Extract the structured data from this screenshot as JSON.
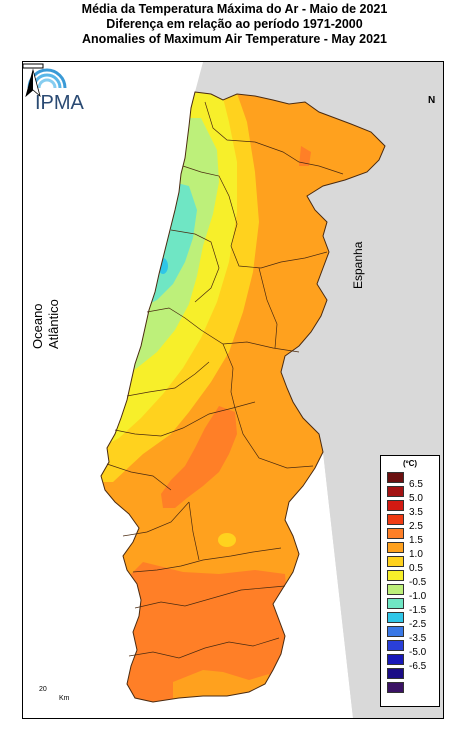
{
  "title": {
    "line1": "Média da Temperatura Máxima do Ar - Maio de 2021",
    "line2": "Diferença em relação ao período 1971-2000",
    "line3": "Anomalies of Maximum Air Temperature - May 2021"
  },
  "labels": {
    "ocean": "Oceano Atlântico",
    "spain": "Espanha",
    "logo": "IPMA",
    "north": "N",
    "scale_value": "20",
    "scale_unit": "Km"
  },
  "legend": {
    "unit": "(ºC)",
    "items": [
      {
        "label": "",
        "color": "#6b1010"
      },
      {
        "label": "6.5",
        "color": "#a31212"
      },
      {
        "label": "5.0",
        "color": "#d31a12"
      },
      {
        "label": "3.5",
        "color": "#f03a12"
      },
      {
        "label": "2.5",
        "color": "#ff7f27"
      },
      {
        "label": "1.5",
        "color": "#ffa11e"
      },
      {
        "label": "1.0",
        "color": "#ffd21e"
      },
      {
        "label": "0.5",
        "color": "#f7ef2a"
      },
      {
        "label": "-0.5",
        "color": "#bdf07a"
      },
      {
        "label": "-1.0",
        "color": "#6fe6c4"
      },
      {
        "label": "-1.5",
        "color": "#2fc6e8"
      },
      {
        "label": "-2.5",
        "color": "#3a78e6"
      },
      {
        "label": "-3.5",
        "color": "#2a3fd8"
      },
      {
        "label": "-5.0",
        "color": "#1818b8"
      },
      {
        "label": "-6.5",
        "color": "#1a0c86"
      },
      {
        "label": "",
        "color": "#3a1264"
      }
    ]
  },
  "colors": {
    "spain": "#d9d9d9",
    "ocean": "#ffffff",
    "border": "#4a2a10"
  }
}
